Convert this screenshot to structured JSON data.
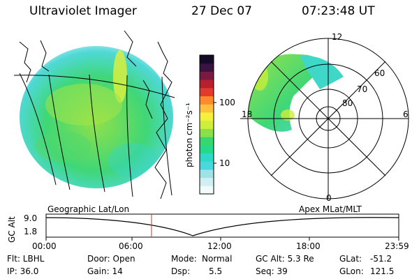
{
  "header": {
    "instrument": "Ultraviolet Imager",
    "date": "27 Dec 07",
    "time": "07:23:48 UT"
  },
  "colorbar": {
    "unit_label": "photon cm⁻²s⁻¹",
    "ticks": [
      "100",
      "10"
    ],
    "log_scale": true,
    "colors": [
      "#f2fbfb",
      "#cfeff1",
      "#9fe3e8",
      "#48d8dd",
      "#2fd8c7",
      "#23d98a",
      "#39d66f",
      "#88e04a",
      "#cdee3a",
      "#f4f03b",
      "#ffc13d",
      "#ff8a2d",
      "#e23b2b",
      "#b81f2f",
      "#7a1a3f",
      "#3b1340",
      "#150a28"
    ]
  },
  "left_panel": {
    "caption": "Geographic Lat/Lon"
  },
  "polar_plot": {
    "caption": "Apex MLat/MLT",
    "mlt_labels": {
      "top": "12",
      "left": "18",
      "right": "6",
      "bottom": "0"
    },
    "lat_labels": [
      "60",
      "70",
      "80"
    ]
  },
  "altitude_plot": {
    "ylabel": "GC Alt",
    "yticks": [
      "9.0",
      "1.8"
    ],
    "xticks": [
      "00:00",
      "06:00",
      "12:00",
      "18:00",
      "23:59"
    ],
    "marker_time": "07:23:48"
  },
  "status": {
    "flt": "Flt: LBHL",
    "ip": "IP: 36.0",
    "door": "Door: Open",
    "gain": "Gain: 14",
    "mode_label": "Mode:",
    "mode_value": "Normal",
    "dsp_label": "Dsp:",
    "dsp_value": "5.5",
    "gcalt": "GC Alt: 5.3 Re",
    "seq": "Seq: 39",
    "glat_label": "GLat:",
    "glat_value": "-51.2",
    "glon_label": "GLon:",
    "glon_value": "121.5"
  },
  "accent_colors": {
    "marker_line": "#d03030"
  }
}
